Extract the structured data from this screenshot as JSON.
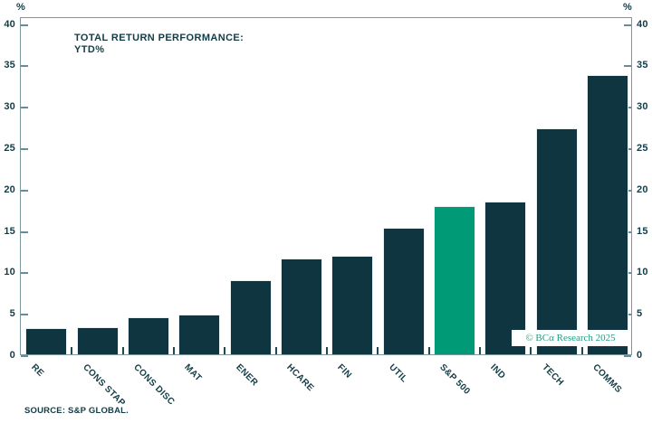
{
  "chart_data": {
    "type": "bar",
    "title_line1": "TOTAL RETURN PERFORMANCE:",
    "title_line2": "YTD%",
    "categories": [
      "RE",
      "CONS STAP",
      "CONS DISC",
      "MAT",
      "ENER",
      "HCARE",
      "FIN",
      "UTIL",
      "S&P 500",
      "IND",
      "TECH",
      "COMMS"
    ],
    "values": [
      3.2,
      3.3,
      4.5,
      4.8,
      8.9,
      11.6,
      11.9,
      15.3,
      17.9,
      18.5,
      27.3,
      33.7
    ],
    "highlight_category": "S&P 500",
    "highlight_index": 8,
    "axis_unit": "%",
    "ylim": [
      0,
      40
    ],
    "yticks": [
      0,
      5,
      10,
      15,
      20,
      25,
      30,
      35,
      40
    ],
    "grid": false,
    "legend_position": "none",
    "bar_color": "#0F3540",
    "highlight_color": "#009A76",
    "axis_color": "#7A99A3",
    "text_color": "#123C46"
  },
  "watermark": {
    "text": "© BCα Research 2025",
    "color": "#1CA183"
  },
  "source": {
    "text": "SOURCE: S&P GLOBAL."
  }
}
